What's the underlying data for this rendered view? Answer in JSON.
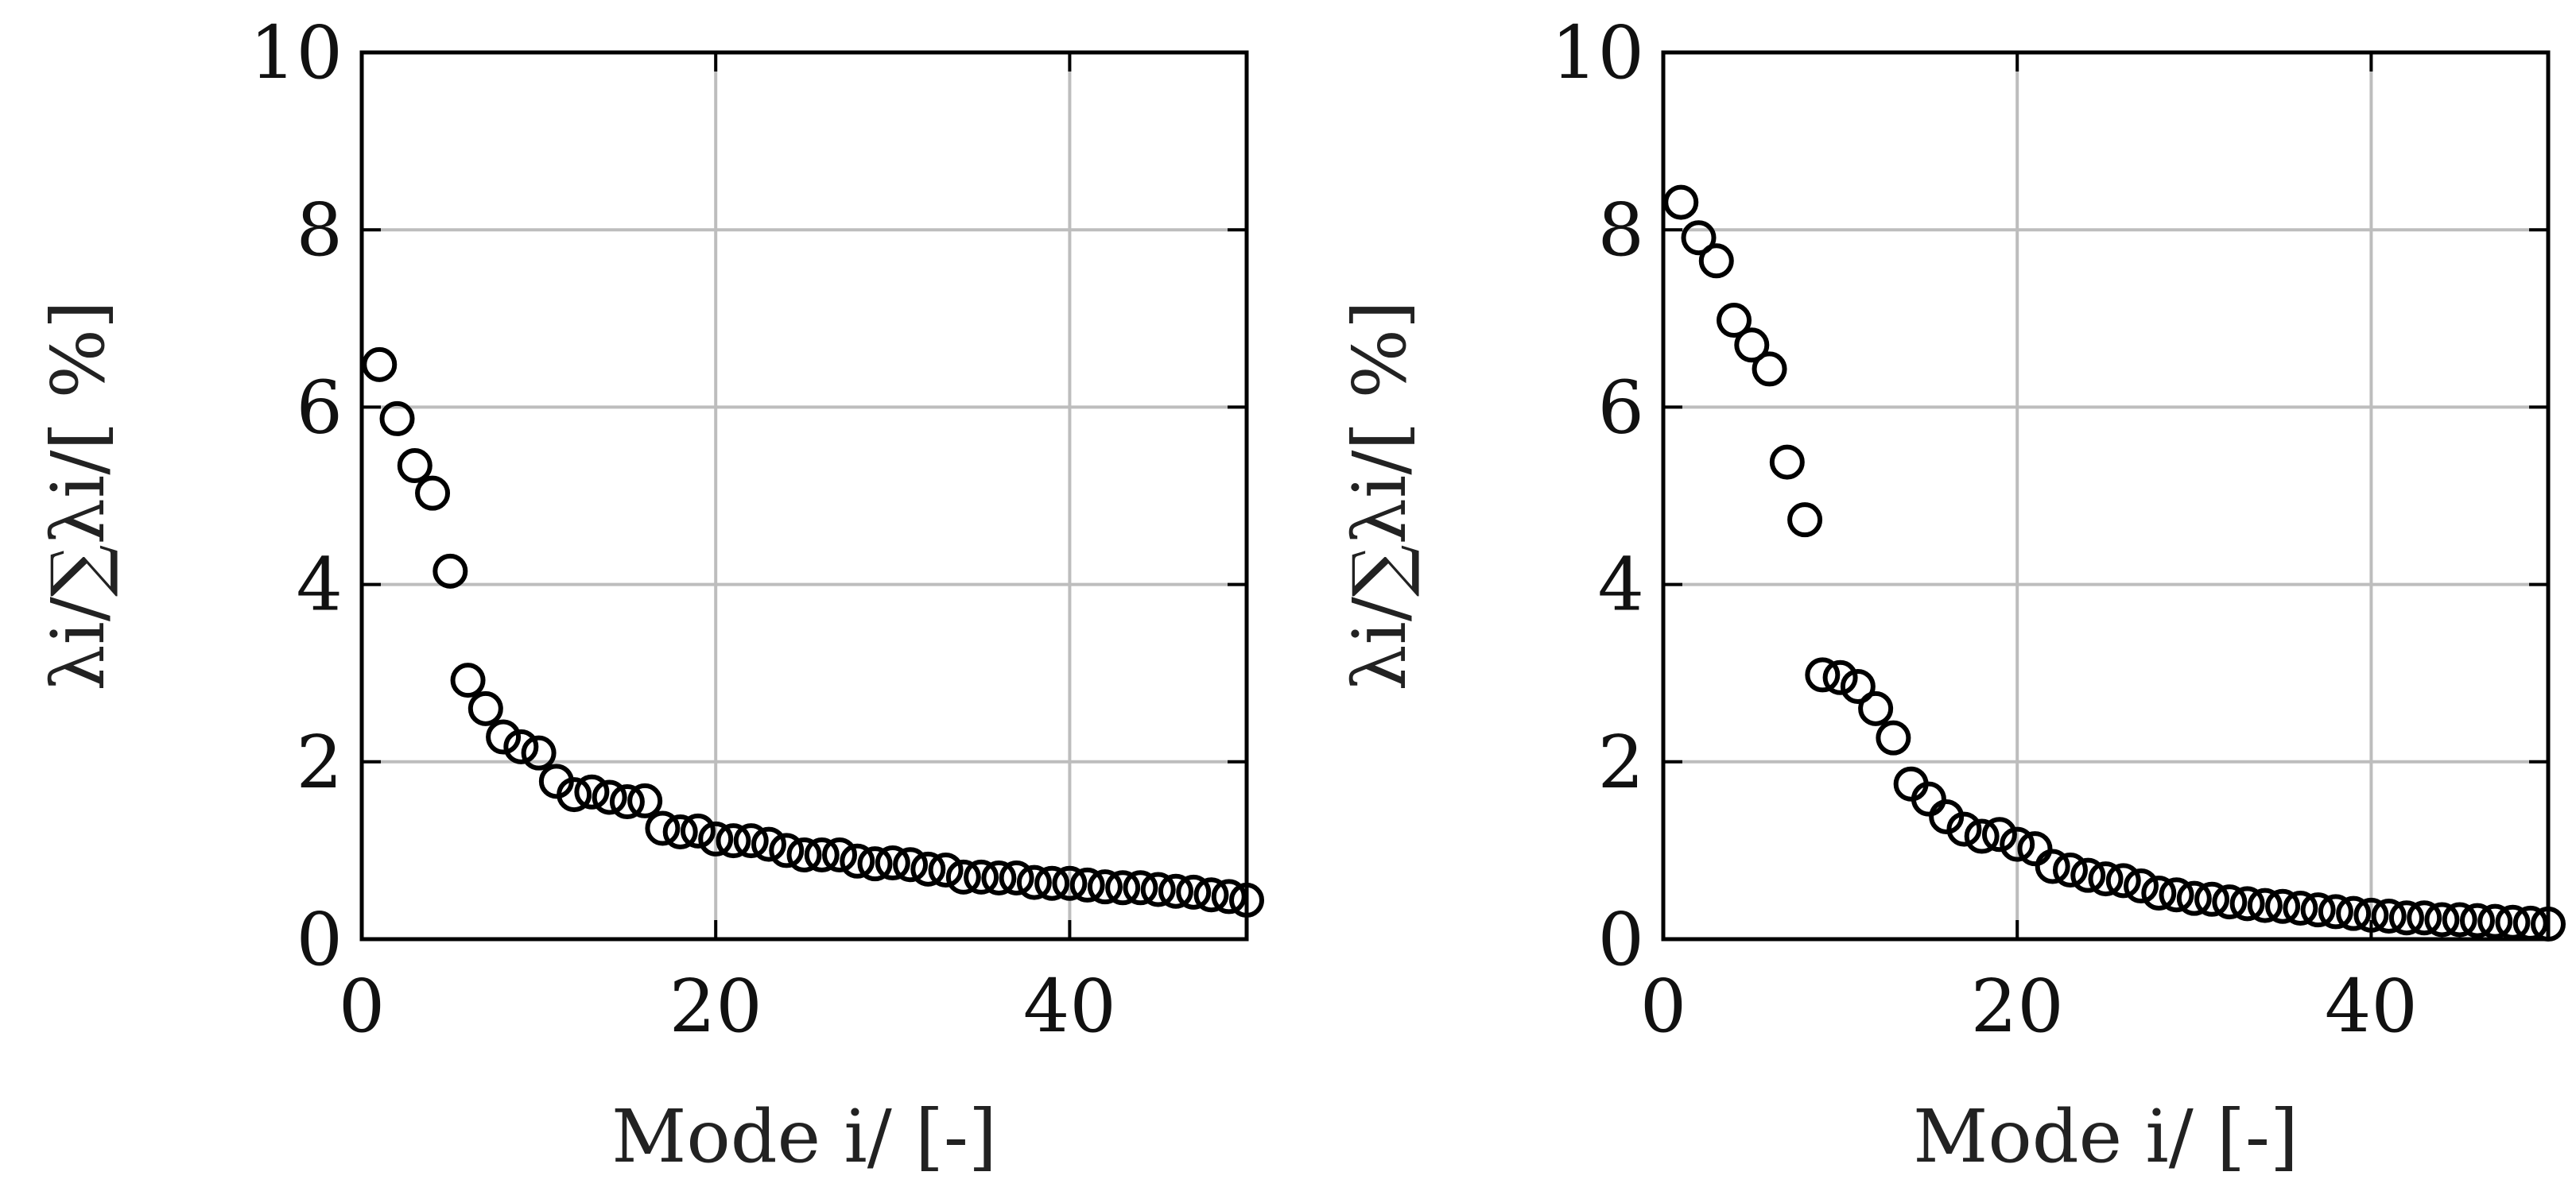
{
  "chart_data": [
    {
      "type": "scatter",
      "xlabel": "Mode i/ [-]",
      "ylabel": "λi/∑λi/[ %]",
      "xlim": [
        0,
        50
      ],
      "ylim": [
        0,
        10
      ],
      "xticks": [
        "0",
        "20",
        "40"
      ],
      "yticks": [
        "0",
        "2",
        "4",
        "6",
        "8",
        "10"
      ],
      "grid": true,
      "marker": "open-circle",
      "x": [
        1,
        2,
        3,
        4,
        5,
        6,
        7,
        8,
        9,
        10,
        11,
        12,
        13,
        14,
        15,
        16,
        17,
        18,
        19,
        20,
        21,
        22,
        23,
        24,
        25,
        26,
        27,
        28,
        29,
        30,
        31,
        32,
        33,
        34,
        35,
        36,
        37,
        38,
        39,
        40,
        41,
        42,
        43,
        44,
        45,
        46,
        47,
        48,
        49,
        50
      ],
      "y": [
        6.48,
        5.87,
        5.34,
        5.03,
        4.15,
        2.92,
        2.6,
        2.28,
        2.17,
        2.1,
        1.78,
        1.63,
        1.66,
        1.6,
        1.55,
        1.56,
        1.25,
        1.21,
        1.22,
        1.13,
        1.11,
        1.11,
        1.07,
        1.0,
        0.95,
        0.95,
        0.95,
        0.88,
        0.85,
        0.86,
        0.84,
        0.79,
        0.78,
        0.7,
        0.7,
        0.69,
        0.69,
        0.64,
        0.63,
        0.63,
        0.61,
        0.59,
        0.58,
        0.58,
        0.56,
        0.54,
        0.53,
        0.5,
        0.48,
        0.44
      ]
    },
    {
      "type": "scatter",
      "xlabel": "Mode i/ [-]",
      "ylabel": "λi/∑λi/[ %]",
      "xlim": [
        0,
        50
      ],
      "ylim": [
        0,
        10
      ],
      "xticks": [
        "0",
        "20",
        "40"
      ],
      "yticks": [
        "0",
        "2",
        "4",
        "6",
        "8",
        "10"
      ],
      "grid": true,
      "marker": "open-circle",
      "x": [
        1,
        2,
        3,
        4,
        5,
        6,
        7,
        8,
        9,
        10,
        11,
        12,
        13,
        14,
        15,
        16,
        17,
        18,
        19,
        20,
        21,
        22,
        23,
        24,
        25,
        26,
        27,
        28,
        29,
        30,
        31,
        32,
        33,
        34,
        35,
        36,
        37,
        38,
        39,
        40,
        41,
        42,
        43,
        44,
        45,
        46,
        47,
        48,
        49,
        50
      ],
      "y": [
        8.31,
        7.91,
        7.65,
        6.98,
        6.7,
        6.43,
        5.38,
        4.73,
        2.98,
        2.95,
        2.85,
        2.6,
        2.27,
        1.75,
        1.58,
        1.38,
        1.24,
        1.16,
        1.18,
        1.07,
        1.02,
        0.82,
        0.78,
        0.72,
        0.68,
        0.66,
        0.6,
        0.52,
        0.5,
        0.46,
        0.45,
        0.42,
        0.4,
        0.38,
        0.37,
        0.35,
        0.33,
        0.31,
        0.29,
        0.27,
        0.26,
        0.24,
        0.24,
        0.22,
        0.22,
        0.21,
        0.2,
        0.19,
        0.18,
        0.17
      ]
    }
  ]
}
